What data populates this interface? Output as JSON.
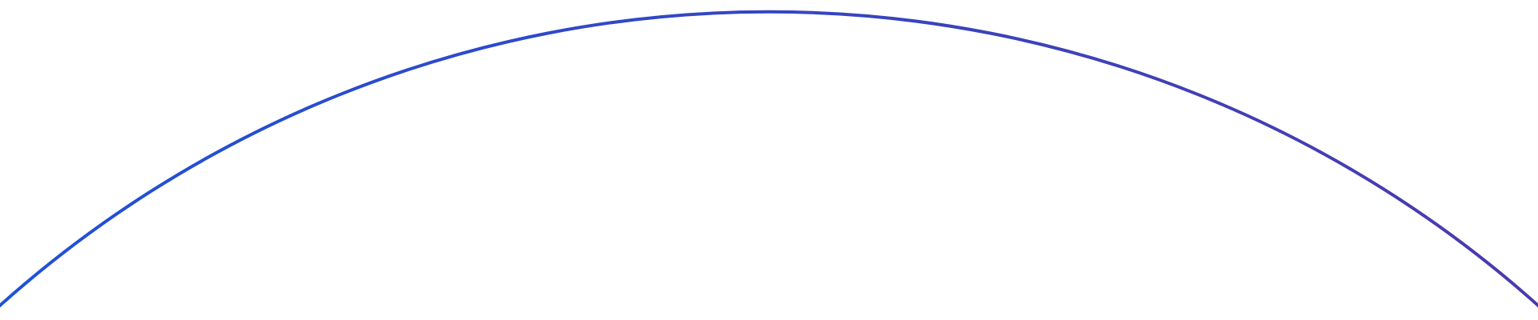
{
  "colors": {
    "background": "#ffffff",
    "arc_start": "#1f52d6",
    "arc_end": "#4a3aad"
  },
  "icons": [
    "arc-decoration"
  ]
}
